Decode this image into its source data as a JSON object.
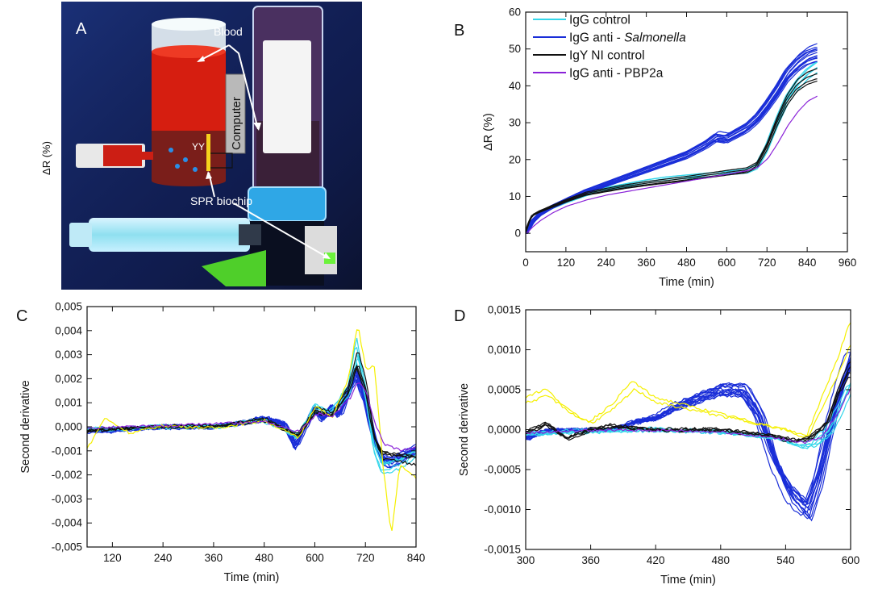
{
  "panels": {
    "A": "A",
    "B": "B",
    "C": "C",
    "D": "D"
  },
  "photo": {
    "ylabel": "ΔR (%)",
    "label_blood": "Blood",
    "label_computer": "Computer",
    "label_chip": "SPR biochip",
    "label_yy": "YY"
  },
  "chart_data": [
    {
      "id": "B",
      "type": "line",
      "xlabel": "Time (min)",
      "ylabel": "ΔR (%)",
      "xlim": [
        0,
        960
      ],
      "ylim": [
        -5,
        60
      ],
      "xticks": [
        0,
        120,
        240,
        360,
        480,
        600,
        720,
        840,
        960
      ],
      "yticks": [
        0,
        10,
        20,
        30,
        40,
        50,
        60
      ],
      "legend_position": "top-left",
      "series": [
        {
          "name": "IgG control",
          "color": "#33d6ea",
          "count": 5,
          "x": [
            0,
            20,
            40,
            80,
            120,
            180,
            240,
            300,
            360,
            420,
            480,
            540,
            600,
            660,
            690,
            720,
            750,
            780,
            810,
            840,
            870
          ],
          "y": [
            0,
            3,
            5,
            7,
            8.5,
            10.5,
            12,
            13,
            14,
            14.8,
            15.3,
            15.8,
            16.3,
            16.8,
            18,
            23,
            30,
            36,
            40,
            43,
            45
          ]
        },
        {
          "name": "IgG anti - Salmonella",
          "name_prefix": "IgG anti - ",
          "name_italic": "Salmonella",
          "color": "#1a2ed8",
          "count": 14,
          "x": [
            0,
            20,
            40,
            80,
            120,
            180,
            240,
            300,
            360,
            420,
            480,
            540,
            570,
            600,
            660,
            690,
            720,
            750,
            780,
            810,
            840,
            870
          ],
          "y": [
            0,
            3.2,
            5,
            7.3,
            9,
            11.5,
            13.5,
            15.5,
            17.5,
            19.5,
            21.5,
            24.5,
            26.5,
            26,
            29,
            31.5,
            35,
            39,
            43.5,
            46.5,
            48.5,
            49.5
          ]
        },
        {
          "name": "IgY NI control",
          "color": "#111111",
          "count": 4,
          "x": [
            0,
            10,
            20,
            40,
            80,
            120,
            180,
            240,
            300,
            360,
            420,
            480,
            540,
            600,
            660,
            690,
            720,
            750,
            780,
            810,
            840,
            870
          ],
          "y": [
            0,
            3,
            5,
            6,
            7.5,
            9,
            11,
            12,
            13,
            13.8,
            14.5,
            15.2,
            16,
            16.8,
            17.5,
            19,
            24,
            31,
            37,
            41,
            43,
            44
          ]
        },
        {
          "name": "IgG anti - PBP2a",
          "color": "#8a22d8",
          "count": 1,
          "x": [
            0,
            20,
            40,
            80,
            120,
            180,
            240,
            300,
            360,
            420,
            480,
            540,
            600,
            660,
            690,
            720,
            750,
            780,
            810,
            840,
            870
          ],
          "y": [
            0,
            2,
            3.6,
            6,
            7.8,
            9.6,
            11,
            12,
            13,
            14,
            15,
            16,
            17,
            18,
            19,
            21.5,
            26,
            31,
            35,
            38,
            39.5
          ]
        }
      ]
    },
    {
      "id": "C",
      "type": "line",
      "xlabel": "Time (min)",
      "ylabel": "Second derivative",
      "xlim": [
        60,
        840
      ],
      "ylim": [
        -0.005,
        0.005
      ],
      "xticks": [
        120,
        240,
        360,
        480,
        600,
        720,
        840
      ],
      "yticks": [
        0.005,
        0.004,
        0.003,
        0.002,
        0.001,
        0.0,
        -0.001,
        -0.002,
        -0.003,
        -0.004,
        -0.005
      ],
      "ytick_labels": [
        "0,005",
        "0,004",
        "0,003",
        "0,002",
        "0,001",
        "0,000",
        "-0,001",
        "-0,002",
        "-0,003",
        "-0,004",
        "-0,005"
      ],
      "series": [
        {
          "name": "IgG anti - Salmonella",
          "color": "#1a2ed8",
          "count": 14,
          "x": [
            60,
            120,
            240,
            360,
            440,
            480,
            530,
            555,
            575,
            600,
            620,
            640,
            660,
            680,
            700,
            720,
            740,
            760,
            780,
            800,
            820,
            840
          ],
          "y": [
            -0.0002,
            -0.00015,
            0.0,
            0.0,
            0.0002,
            0.0004,
            0.0001,
            -0.0009,
            -0.0001,
            0.0008,
            0.0003,
            0.0009,
            0.0005,
            0.0015,
            0.0024,
            0.0013,
            -0.0005,
            -0.0014,
            -0.0016,
            -0.0014,
            -0.0012,
            -0.001
          ]
        },
        {
          "name": "IgG control",
          "color": "#33d6ea",
          "count": 5,
          "x": [
            60,
            120,
            240,
            360,
            480,
            560,
            600,
            640,
            680,
            700,
            720,
            740,
            760,
            800,
            840
          ],
          "y": [
            -0.0001,
            -0.0001,
            0.0,
            0.0,
            0.0003,
            -0.0004,
            0.0008,
            0.0006,
            0.0015,
            0.0032,
            0.0015,
            -0.0008,
            -0.0017,
            -0.0015,
            -0.0011
          ]
        },
        {
          "name": "IgY NI control",
          "color": "#111111",
          "count": 4,
          "x": [
            60,
            120,
            240,
            360,
            480,
            560,
            600,
            640,
            680,
            700,
            720,
            740,
            760,
            800,
            840
          ],
          "y": [
            -0.0002,
            -0.0001,
            0.0,
            0.0,
            0.0003,
            -0.0004,
            0.0007,
            0.0005,
            0.0016,
            0.0028,
            0.0017,
            -0.0005,
            -0.0012,
            -0.0013,
            -0.0014
          ]
        },
        {
          "name": "yellow",
          "color": "#f5f000",
          "count": 1,
          "x": [
            60,
            100,
            160,
            240,
            360,
            480,
            560,
            600,
            640,
            680,
            700,
            720,
            740,
            760,
            780,
            800,
            840
          ],
          "y": [
            -0.0008,
            0.0004,
            -0.0002,
            0.0001,
            0.0,
            0.0003,
            -0.0004,
            0.0009,
            0.0004,
            0.0021,
            0.0042,
            0.0023,
            0.0025,
            -0.0015,
            -0.0043,
            -0.0015,
            -0.002
          ]
        },
        {
          "name": "IgG anti - PBP2a",
          "color": "#8a22d8",
          "count": 1,
          "x": [
            60,
            240,
            480,
            560,
            600,
            640,
            680,
            700,
            720,
            740,
            760,
            800,
            840
          ],
          "y": [
            -0.0001,
            0.0,
            0.0002,
            -0.0003,
            0.0006,
            0.0005,
            0.0014,
            0.0022,
            0.0016,
            0.0001,
            -0.0009,
            -0.0012,
            -0.0011
          ]
        }
      ]
    },
    {
      "id": "D",
      "type": "line",
      "xlabel": "Time (min)",
      "ylabel": "Second derivative",
      "xlim": [
        300,
        600
      ],
      "ylim": [
        -0.0015,
        0.0015
      ],
      "xticks": [
        300,
        360,
        420,
        480,
        540,
        600
      ],
      "yticks": [
        0.0015,
        0.001,
        0.0005,
        0.0,
        -0.0005,
        -0.001,
        -0.0015
      ],
      "ytick_labels": [
        "0,0015",
        "0,0010",
        "0,0005",
        "0,0000",
        "-0,0005",
        "-0,0010",
        "-0,0015"
      ],
      "series": [
        {
          "name": "IgG anti - Salmonella",
          "color": "#1a2ed8",
          "count": 14,
          "x": [
            300,
            320,
            340,
            360,
            380,
            400,
            420,
            440,
            460,
            480,
            500,
            515,
            530,
            545,
            560,
            570,
            580,
            590,
            600
          ],
          "y": [
            -0.0001,
            0.0,
            0.0,
            0.0,
            0.0,
            0.0001,
            0.00015,
            0.0003,
            0.0004,
            0.0005,
            0.0005,
            0.0002,
            -0.0004,
            -0.0008,
            -0.001,
            -0.0006,
            0.0,
            0.0005,
            0.0009
          ]
        },
        {
          "name": "IgG control",
          "color": "#33d6ea",
          "count": 5,
          "x": [
            300,
            360,
            420,
            480,
            530,
            550,
            565,
            580,
            590,
            600
          ],
          "y": [
            -5e-05,
            -2e-05,
            0.0,
            -3e-05,
            -0.0001,
            -0.0002,
            -0.00018,
            0.0,
            0.0003,
            0.0006
          ]
        },
        {
          "name": "IgY NI control",
          "color": "#111111",
          "count": 4,
          "x": [
            300,
            320,
            340,
            360,
            380,
            420,
            480,
            530,
            550,
            565,
            580,
            590,
            600
          ],
          "y": [
            -5e-05,
            8e-05,
            -0.00012,
            0.0,
            5e-05,
            0.0,
            0.0,
            -8e-05,
            -0.00015,
            -0.0001,
            0.0001,
            0.0005,
            0.0008
          ]
        },
        {
          "name": "yellow",
          "color": "#f5f000",
          "count": 2,
          "x": [
            300,
            320,
            345,
            360,
            380,
            400,
            420,
            450,
            480,
            510,
            540,
            560,
            575,
            590,
            600
          ],
          "y": [
            0.0004,
            0.0005,
            0.0002,
            0.0001,
            0.0003,
            0.0006,
            0.0004,
            0.0003,
            0.0002,
            0.0001,
            0.0,
            -0.0001,
            0.0004,
            0.0009,
            0.0013
          ]
        },
        {
          "name": "IgG anti - PBP2a",
          "color": "#8a22d8",
          "count": 1,
          "x": [
            300,
            360,
            420,
            480,
            530,
            555,
            570,
            585,
            600
          ],
          "y": [
            -3e-05,
            0.0,
            0.0,
            -2e-05,
            -0.0001,
            -0.00015,
            -0.0001,
            0.0002,
            0.0006
          ]
        }
      ]
    }
  ]
}
